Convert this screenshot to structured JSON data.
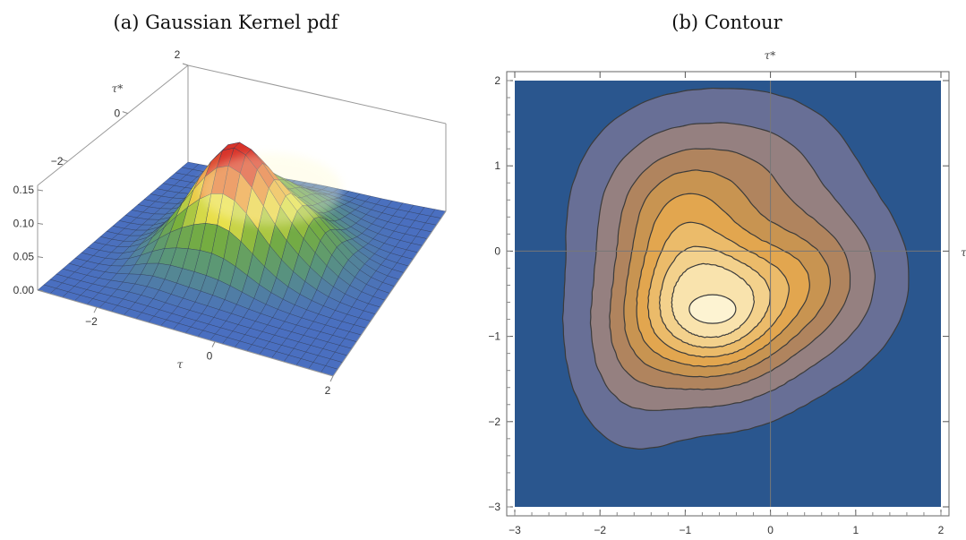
{
  "chart_data": [
    {
      "type": "surface",
      "title": "(a) Gaussian Kernel pdf",
      "xlabel": "τ",
      "ylabel": "τ*",
      "x_ticks": [
        "−2",
        "0",
        "2"
      ],
      "y_ticks": [
        "−2",
        "0",
        "2"
      ],
      "z_ticks": [
        "0.00",
        "0.05",
        "0.10",
        "0.15"
      ],
      "xlim": [
        -3,
        2
      ],
      "ylim": [
        -3,
        2
      ],
      "zlim": [
        0,
        0.16
      ],
      "peak": {
        "x": -0.7,
        "y": -0.7,
        "z": 0.155
      },
      "colors": {
        "low": "#4a6fc0",
        "mid": "#e8e24a",
        "high": "#d8332a"
      }
    },
    {
      "type": "contour",
      "title": "(b) Contour",
      "xlabel": "τ",
      "ylabel": "τ*",
      "x_ticks": [
        "−3",
        "−2",
        "−1",
        "0",
        "1",
        "2"
      ],
      "y_ticks": [
        "−3",
        "−2",
        "−1",
        "0",
        "1",
        "2"
      ],
      "xlim": [
        -3,
        2
      ],
      "ylim": [
        -3,
        2
      ],
      "levels": [
        0.005,
        0.02,
        0.04,
        0.06,
        0.08,
        0.1,
        0.12,
        0.14
      ],
      "peak": {
        "x": -0.7,
        "y": -0.7
      },
      "fill_colors": [
        "#2a568e",
        "#686f96",
        "#958080",
        "#b0845e",
        "#c89451",
        "#e2a64f",
        "#ebbb6a",
        "#f3d18c",
        "#f9e3ad",
        "#fdf3d2"
      ]
    }
  ]
}
